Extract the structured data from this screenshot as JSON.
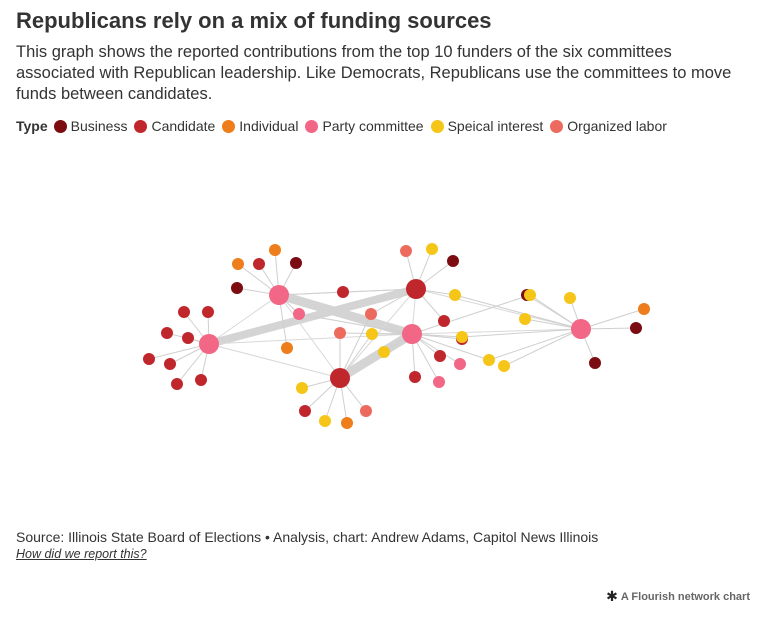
{
  "title": "Republicans rely on a mix of funding sources",
  "subtitle": "This graph shows the reported contributions from the top 10 funders of the six committees associated with Republican leadership. Like Democrats, Republicans use the committees to move funds between candidates.",
  "legend": {
    "title": "Type",
    "items": [
      {
        "label": "Business",
        "color": "#7b0d12"
      },
      {
        "label": "Candidate",
        "color": "#c0272d"
      },
      {
        "label": "Individual",
        "color": "#ee7d1b"
      },
      {
        "label": "Party committee",
        "color": "#f26686"
      },
      {
        "label": "Speical interest",
        "color": "#f5c518"
      },
      {
        "label": "Organized labor",
        "color": "#ec6a5e"
      }
    ]
  },
  "chart_data": {
    "type": "network",
    "hub_types": [
      "Party committee",
      "Party committee",
      "Party committee",
      "Party committee",
      "Candidate",
      "Candidate"
    ],
    "heavy_links": 3
  },
  "footer": {
    "source": "Source: Illinois State Board of Elections • Analysis, chart: Andrew Adams, Capitol News Illinois",
    "method_link": "How did we report this?",
    "credit": "A Flourish network chart"
  }
}
